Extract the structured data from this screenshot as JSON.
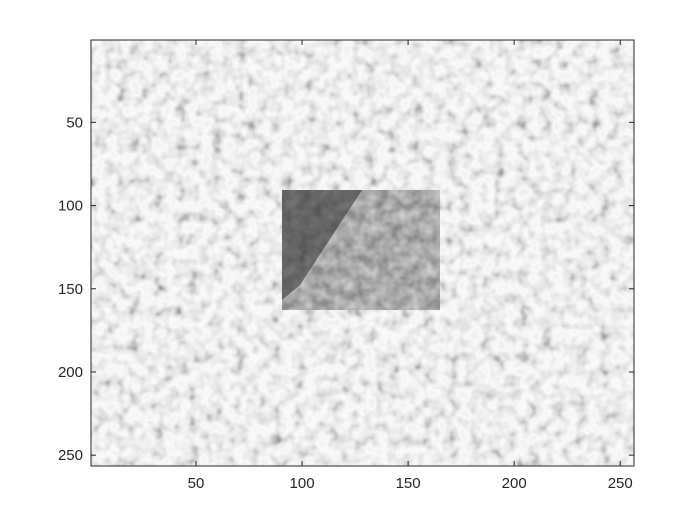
{
  "figure": {
    "background_color": "#ffffff",
    "axes_color": "#262626",
    "colormap": "gray"
  },
  "image": {
    "rows": 256,
    "cols": 256,
    "description_colors": {
      "speckle_light": "#e6e6e6",
      "speckle_dark": "#1a1a1a",
      "inner_rect_dark": "#2b2b2b"
    }
  },
  "axes": {
    "x_ticks": [
      {
        "value": 50,
        "label": "50"
      },
      {
        "value": 100,
        "label": "100"
      },
      {
        "value": 150,
        "label": "150"
      },
      {
        "value": 200,
        "label": "200"
      },
      {
        "value": 250,
        "label": "250"
      }
    ],
    "y_ticks": [
      {
        "value": 50,
        "label": "50"
      },
      {
        "value": 100,
        "label": "100"
      },
      {
        "value": 150,
        "label": "150"
      },
      {
        "value": 200,
        "label": "200"
      },
      {
        "value": 250,
        "label": "250"
      }
    ],
    "x_range": [
      0.5,
      256.5
    ],
    "y_range": [
      0.5,
      256.5
    ],
    "y_reversed": true
  }
}
